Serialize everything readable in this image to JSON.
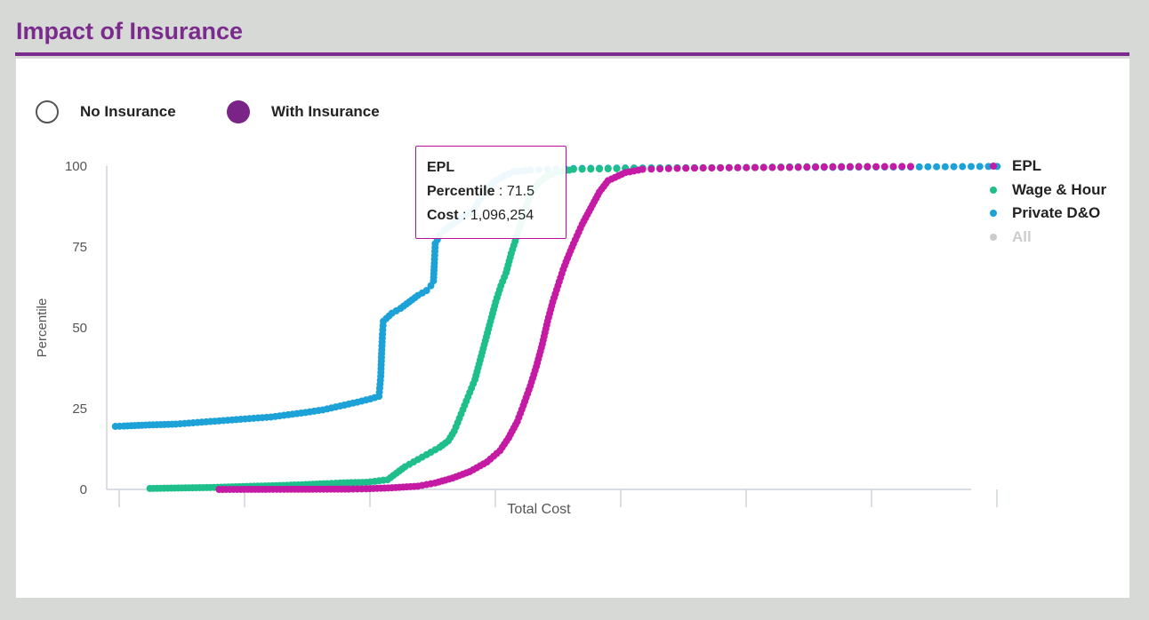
{
  "page": {
    "title": "Impact of Insurance"
  },
  "toggles": {
    "no_insurance": {
      "label": "No Insurance",
      "selected": false
    },
    "with_insurance": {
      "label": "With Insurance",
      "selected": true,
      "color": "#7b2487"
    }
  },
  "legend": [
    {
      "label": "EPL",
      "color": "#c41aa4",
      "hidden": false
    },
    {
      "label": "Wage & Hour",
      "color": "#1ebf8a",
      "hidden": false
    },
    {
      "label": "Private D&O",
      "color": "#1da2d8",
      "hidden": false
    },
    {
      "label": "All",
      "color": "#cccccc",
      "hidden": true
    }
  ],
  "tooltip": {
    "series": "EPL",
    "percentile_label": "Percentile",
    "percentile_value": "71.5",
    "cost_label": "Cost",
    "cost_value": "1,096,254",
    "border_color": "#b90fa0"
  },
  "chart_data": {
    "type": "scatter",
    "xlabel": "Total Cost",
    "ylabel": "Percentile",
    "ylim": [
      0,
      100
    ],
    "yticks": [
      0,
      25,
      50,
      75,
      100
    ],
    "x_tick_labels": [],
    "grid": false,
    "legend_position": "right",
    "series": [
      {
        "name": "Private D&O",
        "color": "#1da2d8",
        "points": [
          [
            0.01,
            19.5
          ],
          [
            0.02,
            19.6
          ],
          [
            0.045,
            19.9
          ],
          [
            0.08,
            20.2
          ],
          [
            0.09,
            20.4
          ],
          [
            0.11,
            20.8
          ],
          [
            0.13,
            21.2
          ],
          [
            0.15,
            21.6
          ],
          [
            0.17,
            22.0
          ],
          [
            0.19,
            22.4
          ],
          [
            0.21,
            23.1
          ],
          [
            0.23,
            23.8
          ],
          [
            0.25,
            24.6
          ],
          [
            0.27,
            25.8
          ],
          [
            0.29,
            27.0
          ],
          [
            0.305,
            28.0
          ],
          [
            0.315,
            28.8
          ],
          [
            0.317,
            35
          ],
          [
            0.318,
            42
          ],
          [
            0.319,
            48
          ],
          [
            0.32,
            52
          ],
          [
            0.33,
            54.5
          ],
          [
            0.34,
            56
          ],
          [
            0.35,
            58
          ],
          [
            0.36,
            60
          ],
          [
            0.37,
            61.5
          ],
          [
            0.375,
            63
          ],
          [
            0.378,
            64.5
          ],
          [
            0.379,
            70
          ],
          [
            0.38,
            76
          ],
          [
            0.385,
            78.5
          ],
          [
            0.39,
            80
          ],
          [
            0.4,
            82
          ],
          [
            0.41,
            84
          ],
          [
            0.42,
            85.5
          ],
          [
            0.425,
            86.5
          ],
          [
            0.43,
            89
          ],
          [
            0.435,
            91
          ],
          [
            0.44,
            93
          ],
          [
            0.45,
            95.5
          ],
          [
            0.46,
            97
          ],
          [
            0.47,
            98.2
          ],
          [
            0.49,
            98.8
          ],
          [
            0.51,
            99.0
          ],
          [
            0.53,
            99.2
          ],
          [
            0.56,
            99.3
          ],
          [
            0.6,
            99.4
          ],
          [
            0.66,
            99.5
          ],
          [
            0.72,
            99.5
          ],
          [
            0.78,
            99.6
          ],
          [
            0.84,
            99.6
          ],
          [
            0.88,
            99.7
          ],
          [
            0.93,
            99.7
          ],
          [
            0.95,
            99.8
          ],
          [
            0.97,
            99.8
          ],
          [
            1.01,
            99.9
          ],
          [
            1.03,
            99.9
          ]
        ]
      },
      {
        "name": "Wage & Hour",
        "color": "#1ebf8a",
        "points": [
          [
            0.05,
            0.3
          ],
          [
            0.12,
            0.6
          ],
          [
            0.145,
            0.8
          ],
          [
            0.2,
            1.2
          ],
          [
            0.23,
            1.5
          ],
          [
            0.255,
            1.8
          ],
          [
            0.27,
            2.0
          ],
          [
            0.3,
            2.2
          ],
          [
            0.31,
            2.5
          ],
          [
            0.325,
            3.0
          ],
          [
            0.335,
            5.0
          ],
          [
            0.345,
            7.0
          ],
          [
            0.355,
            8.5
          ],
          [
            0.365,
            10.0
          ],
          [
            0.375,
            11.5
          ],
          [
            0.385,
            13.0
          ],
          [
            0.395,
            15.0
          ],
          [
            0.402,
            18.0
          ],
          [
            0.408,
            22.0
          ],
          [
            0.414,
            26.0
          ],
          [
            0.42,
            30.0
          ],
          [
            0.426,
            34.0
          ],
          [
            0.432,
            40.0
          ],
          [
            0.438,
            46.0
          ],
          [
            0.444,
            52.0
          ],
          [
            0.45,
            58.0
          ],
          [
            0.456,
            63.0
          ],
          [
            0.462,
            67.0
          ],
          [
            0.468,
            73.0
          ],
          [
            0.474,
            78.0
          ],
          [
            0.48,
            83.0
          ],
          [
            0.486,
            88.0
          ],
          [
            0.492,
            92.0
          ],
          [
            0.5,
            95.0
          ],
          [
            0.51,
            97.0
          ],
          [
            0.52,
            98.0
          ],
          [
            0.54,
            99.0
          ],
          [
            0.62,
            99.3
          ],
          [
            0.7,
            99.5
          ],
          [
            0.75,
            99.6
          ],
          [
            0.8,
            99.8
          ],
          [
            0.88,
            99.9
          ]
        ]
      },
      {
        "name": "EPL",
        "color": "#c41aa4",
        "points": [
          [
            0.13,
            0.0
          ],
          [
            0.28,
            0.1
          ],
          [
            0.3,
            0.2
          ],
          [
            0.33,
            0.5
          ],
          [
            0.36,
            1.0
          ],
          [
            0.38,
            2.0
          ],
          [
            0.4,
            3.5
          ],
          [
            0.42,
            5.5
          ],
          [
            0.44,
            8.5
          ],
          [
            0.455,
            12.0
          ],
          [
            0.465,
            16.0
          ],
          [
            0.475,
            21.0
          ],
          [
            0.482,
            26.0
          ],
          [
            0.49,
            32.0
          ],
          [
            0.497,
            38.0
          ],
          [
            0.504,
            45.0
          ],
          [
            0.51,
            52.0
          ],
          [
            0.516,
            58.0
          ],
          [
            0.522,
            63.0
          ],
          [
            0.528,
            68.0
          ],
          [
            0.533,
            71.5
          ],
          [
            0.54,
            76.0
          ],
          [
            0.55,
            82.0
          ],
          [
            0.56,
            87.0
          ],
          [
            0.57,
            92.0
          ],
          [
            0.58,
            95.5
          ],
          [
            0.6,
            98.0
          ],
          [
            0.62,
            99.0
          ],
          [
            0.66,
            99.3
          ],
          [
            0.72,
            99.5
          ],
          [
            0.78,
            99.6
          ],
          [
            0.86,
            99.8
          ],
          [
            0.93,
            99.9
          ]
        ]
      }
    ]
  }
}
